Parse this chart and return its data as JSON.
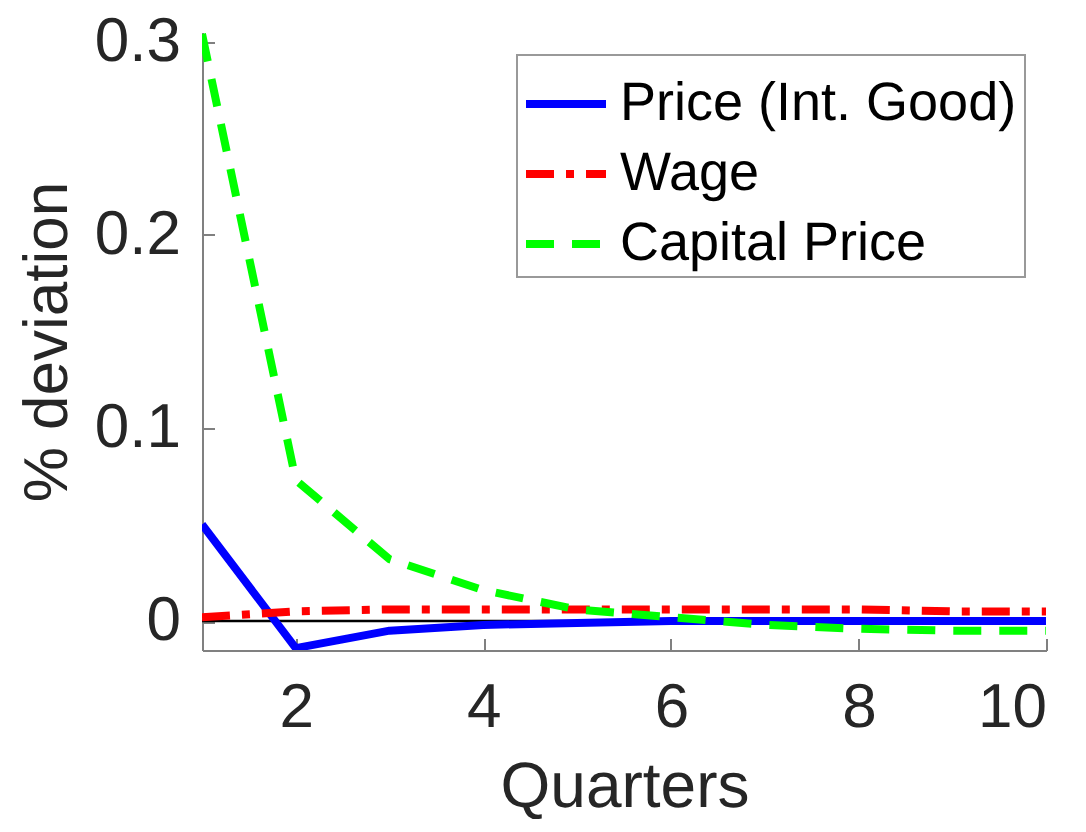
{
  "chart_data": {
    "type": "line",
    "xlabel": "Quarters",
    "ylabel": "% deviation",
    "x": [
      1,
      2,
      3,
      4,
      5,
      6,
      7,
      8,
      9,
      10
    ],
    "series": [
      {
        "name": "Price (Int. Good)",
        "color": "#0000ff",
        "line_style": "solid",
        "values": [
          0.05,
          -0.014,
          -0.005,
          -0.002,
          -0.001,
          0.0,
          0.0,
          0.0,
          0.0,
          0.0
        ]
      },
      {
        "name": "Wage",
        "color": "#ff0000",
        "line_style": "dashdot",
        "values": [
          0.002,
          0.005,
          0.006,
          0.006,
          0.006,
          0.006,
          0.006,
          0.006,
          0.005,
          0.005
        ]
      },
      {
        "name": "Capital Price",
        "color": "#00ff00",
        "line_style": "dashed",
        "values": [
          0.304,
          0.073,
          0.032,
          0.016,
          0.006,
          0.002,
          -0.002,
          -0.004,
          -0.005,
          -0.005
        ]
      }
    ],
    "xlim": [
      1,
      10
    ],
    "ylim": [
      -0.015,
      0.305
    ],
    "xticks": [
      2,
      4,
      6,
      8,
      10
    ],
    "yticks": [
      0,
      0.1,
      0.2,
      0.3
    ],
    "ref_lines": [
      {
        "axis": "y",
        "value": 0,
        "color": "#000000"
      }
    ],
    "legend": "top right"
  }
}
